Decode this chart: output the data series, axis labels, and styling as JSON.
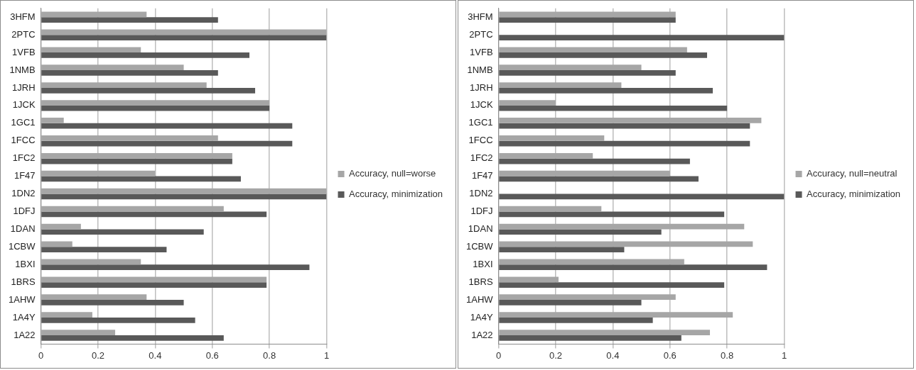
{
  "chart_data": [
    {
      "type": "bar",
      "orientation": "horizontal",
      "categories": [
        "3HFM",
        "2PTC",
        "1VFB",
        "1NMB",
        "1JRH",
        "1JCK",
        "1GC1",
        "1FCC",
        "1FC2",
        "1F47",
        "1DN2",
        "1DFJ",
        "1DAN",
        "1CBW",
        "1BXI",
        "1BRS",
        "1AHW",
        "1A4Y",
        "1A22"
      ],
      "series": [
        {
          "name": "Accuracy, null=worse",
          "color": "#a6a6a6",
          "values": [
            0.37,
            1.0,
            0.35,
            0.5,
            0.58,
            0.8,
            0.08,
            0.62,
            0.67,
            0.4,
            1.0,
            0.64,
            0.14,
            0.11,
            0.35,
            0.79,
            0.37,
            0.18,
            0.26
          ]
        },
        {
          "name": "Accuracy, minimization",
          "color": "#595959",
          "values": [
            0.62,
            1.0,
            0.73,
            0.62,
            0.75,
            0.8,
            0.88,
            0.88,
            0.67,
            0.7,
            1.0,
            0.79,
            0.57,
            0.44,
            0.94,
            0.79,
            0.5,
            0.54,
            0.64
          ]
        }
      ],
      "xlim": [
        0,
        1
      ],
      "xticks": [
        0,
        0.2,
        0.4,
        0.6,
        0.8,
        1
      ],
      "grid": "x",
      "legend": "right"
    },
    {
      "type": "bar",
      "orientation": "horizontal",
      "categories": [
        "3HFM",
        "2PTC",
        "1VFB",
        "1NMB",
        "1JRH",
        "1JCK",
        "1GC1",
        "1FCC",
        "1FC2",
        "1F47",
        "1DN2",
        "1DFJ",
        "1DAN",
        "1CBW",
        "1BXI",
        "1BRS",
        "1AHW",
        "1A4Y",
        "1A22"
      ],
      "series": [
        {
          "name": "Accuracy, null=neutral",
          "color": "#a6a6a6",
          "values": [
            0.62,
            null,
            0.66,
            0.5,
            0.43,
            0.2,
            0.92,
            0.37,
            0.33,
            0.6,
            null,
            0.36,
            0.86,
            0.89,
            0.65,
            0.21,
            0.62,
            0.82,
            0.74
          ]
        },
        {
          "name": "Accuracy, minimization",
          "color": "#595959",
          "values": [
            0.62,
            1.0,
            0.73,
            0.62,
            0.75,
            0.8,
            0.88,
            0.88,
            0.67,
            0.7,
            1.0,
            0.79,
            0.57,
            0.44,
            0.94,
            0.79,
            0.5,
            0.54,
            0.64
          ]
        }
      ],
      "xlim": [
        0,
        1
      ],
      "xticks": [
        0,
        0.2,
        0.4,
        0.6,
        0.8,
        1
      ],
      "grid": "x",
      "legend": "right"
    }
  ]
}
